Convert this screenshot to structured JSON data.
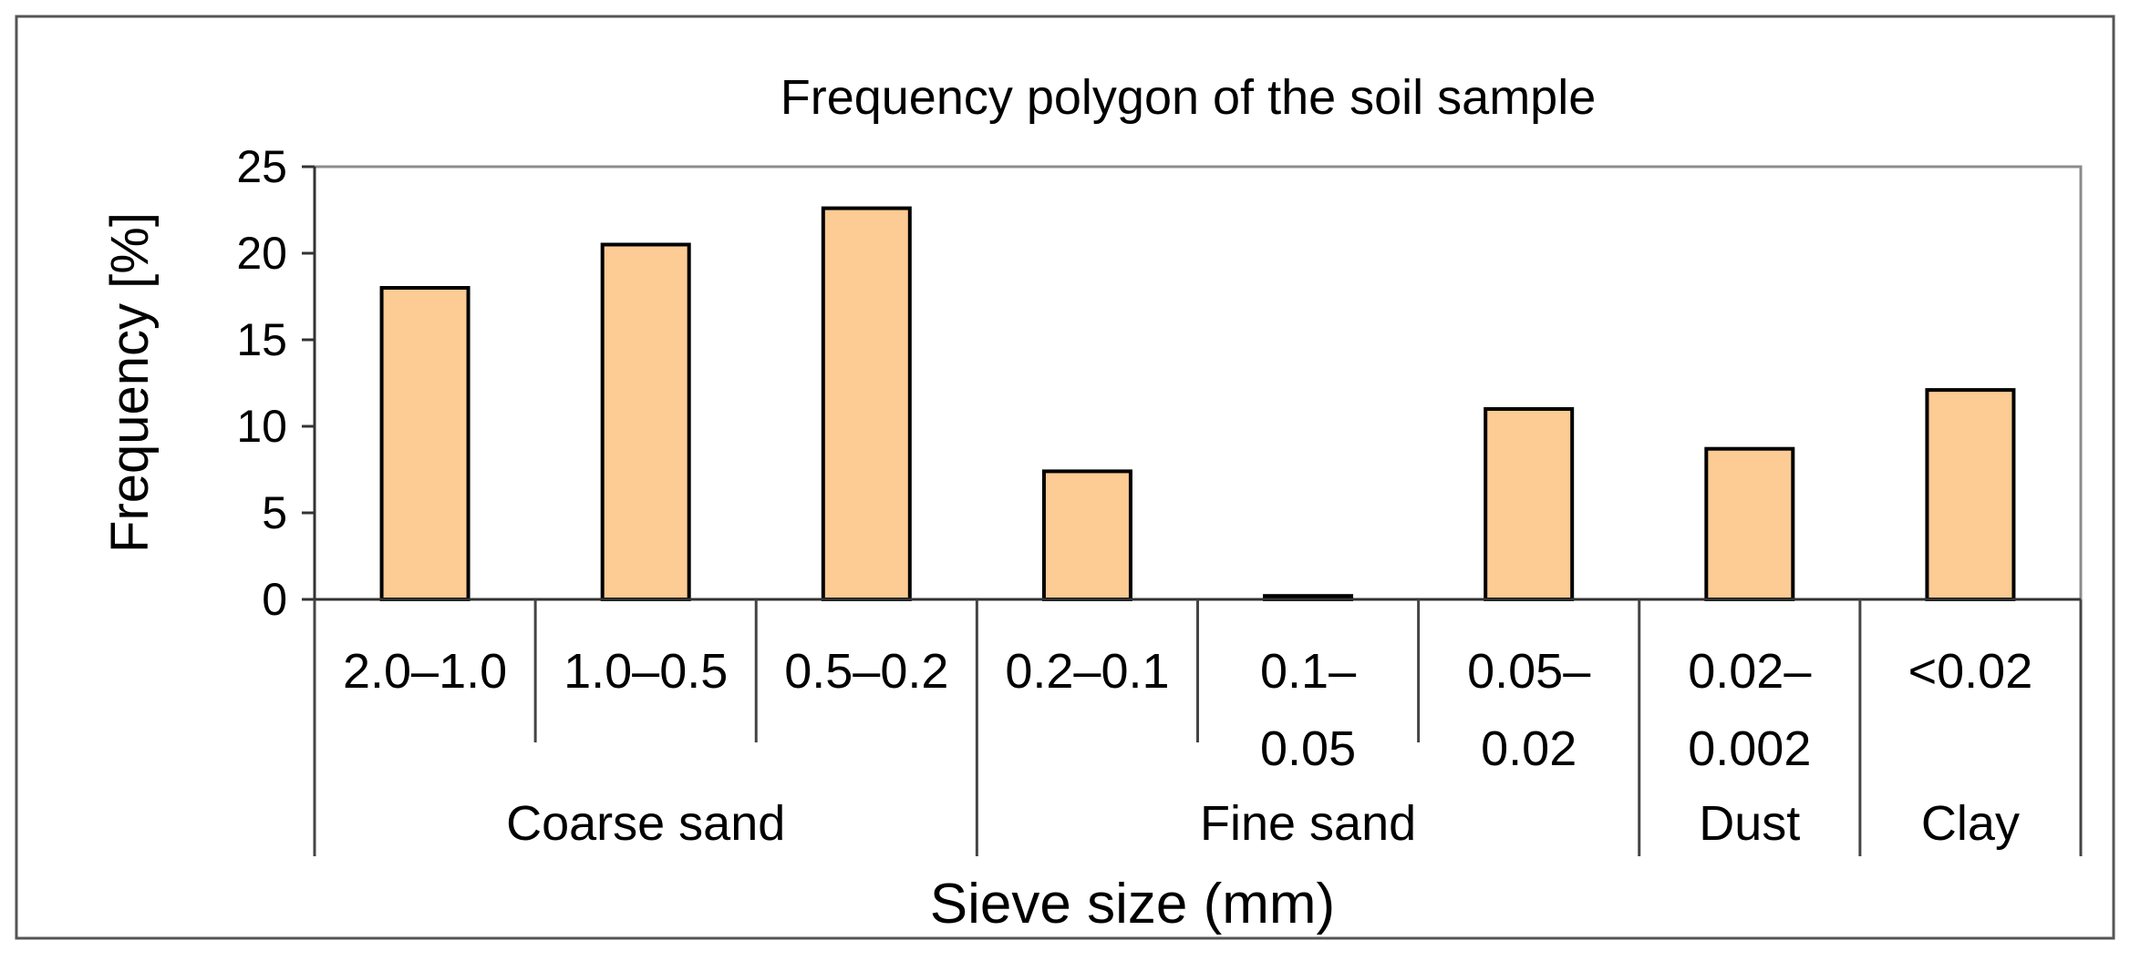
{
  "chart_data": {
    "type": "bar",
    "title": "Frequency polygon of the soil sample",
    "xlabel": "Sieve size (mm)",
    "ylabel": "Frequency [%]",
    "ylim": [
      0,
      25
    ],
    "yticks": [
      "0",
      "5",
      "10",
      "15",
      "20",
      "25"
    ],
    "grid": false,
    "legend": "none",
    "categories": [
      {
        "label": [
          "2.0–1.0"
        ],
        "group": "Coarse sand"
      },
      {
        "label": [
          "1.0–0.5"
        ],
        "group": "Coarse sand"
      },
      {
        "label": [
          "0.5–0.2"
        ],
        "group": "Coarse sand"
      },
      {
        "label": [
          "0.2–0.1"
        ],
        "group": "Fine sand"
      },
      {
        "label": [
          "0.1–",
          "0.05"
        ],
        "group": "Fine sand"
      },
      {
        "label": [
          "0.05–",
          "0.02"
        ],
        "group": "Fine sand"
      },
      {
        "label": [
          "0.02–",
          "0.002"
        ],
        "group": "Dust"
      },
      {
        "label": [
          "<0.02"
        ],
        "group": "Clay"
      }
    ],
    "groups": [
      "Coarse sand",
      "Fine sand",
      "Dust",
      "Clay"
    ],
    "values": [
      18.0,
      20.5,
      22.6,
      7.4,
      0.2,
      11.0,
      8.7,
      12.1
    ],
    "colors": {
      "bar_fill": "#FDCB94",
      "bar_stroke": "#000000",
      "frame": "#808080",
      "axis": "#333333"
    }
  }
}
